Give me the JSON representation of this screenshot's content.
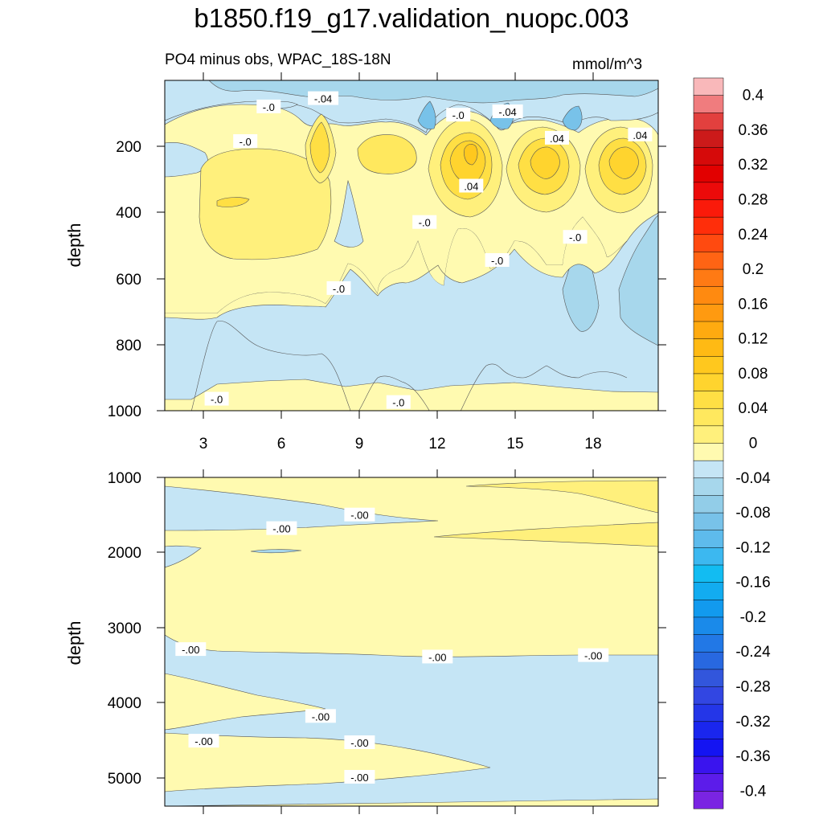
{
  "title": "b1850.f19_g17.validation_nuopc.003",
  "subtitle": "PO4 minus obs, WPAC_18S-18N",
  "units": "mmol/m^3",
  "chart_data": [
    {
      "type": "heatmap",
      "panel": "upper",
      "ylabel": "depth",
      "xlabel": "",
      "xlim": [
        1.5,
        20.5
      ],
      "ylim": [
        1000,
        0
      ],
      "x_ticks": [
        "3",
        "6",
        "9",
        "12",
        "15",
        "18"
      ],
      "y_ticks": [
        "200",
        "400",
        "600",
        "800",
        "1000"
      ],
      "contour_labels": [
        {
          "text": "-.0",
          "x": 5.5,
          "depth": 80
        },
        {
          "text": "-.04",
          "x": 7.6,
          "depth": 55
        },
        {
          "text": "-.0",
          "x": 12.8,
          "depth": 105
        },
        {
          "text": "-.04",
          "x": 14.7,
          "depth": 95
        },
        {
          "text": "-.0",
          "x": 4.6,
          "depth": 185
        },
        {
          "text": ".04",
          "x": 16.6,
          "depth": 175
        },
        {
          "text": ".04",
          "x": 19.8,
          "depth": 165
        },
        {
          "text": ".04",
          "x": 13.3,
          "depth": 320
        },
        {
          "text": "-.0",
          "x": 11.5,
          "depth": 430
        },
        {
          "text": "-.0",
          "x": 17.3,
          "depth": 475
        },
        {
          "text": "-.0",
          "x": 14.3,
          "depth": 545
        },
        {
          "text": "-.0",
          "x": 8.2,
          "depth": 630
        },
        {
          "text": "-.0",
          "x": 3.5,
          "depth": 965
        },
        {
          "text": "-.0",
          "x": 10.5,
          "depth": 975
        }
      ]
    },
    {
      "type": "heatmap",
      "panel": "lower",
      "ylabel": "depth",
      "xlabel": "",
      "xlim": [
        1.5,
        20.5
      ],
      "ylim": [
        5375,
        1000
      ],
      "y_ticks": [
        "1000",
        "2000",
        "3000",
        "4000",
        "5000"
      ],
      "contour_labels": [
        {
          "text": "-.00",
          "x": 9.0,
          "depth": 1500
        },
        {
          "text": "-.00",
          "x": 6.0,
          "depth": 1680
        },
        {
          "text": "-.00",
          "x": 2.5,
          "depth": 3290
        },
        {
          "text": "-.00",
          "x": 12.0,
          "depth": 3390
        },
        {
          "text": "-.00",
          "x": 18.0,
          "depth": 3370
        },
        {
          "text": "-.00",
          "x": 7.5,
          "depth": 4180
        },
        {
          "text": "-.00",
          "x": 3.0,
          "depth": 4510
        },
        {
          "text": "-.00",
          "x": 9.0,
          "depth": 4530
        },
        {
          "text": "-.00",
          "x": 9.0,
          "depth": 4990
        }
      ]
    }
  ],
  "colorbar": {
    "labels": [
      "0.4",
      "0.36",
      "0.32",
      "0.28",
      "0.24",
      "0.2",
      "0.16",
      "0.12",
      "0.08",
      "0.04",
      "0",
      "-0.04",
      "-0.08",
      "-0.12",
      "-0.16",
      "-0.2",
      "-0.24",
      "-0.28",
      "-0.32",
      "-0.36",
      "-0.4"
    ],
    "colors": [
      "#F9B8BA",
      "#F07C7E",
      "#E2403E",
      "#CC1A1A",
      "#D60A0A",
      "#E20000",
      "#EC0A0A",
      "#FA1A0A",
      "#FF2E0A",
      "#FF4A10",
      "#FF6414",
      "#FF7A14",
      "#FF8A10",
      "#FF9A10",
      "#FFAA10",
      "#FFBA14",
      "#FFC81E",
      "#FFD42E",
      "#FFDF44",
      "#FFE85E",
      "#FFF07C",
      "#FFFAB0",
      "#C5E5F5",
      "#A7D7EC",
      "#92CDE8",
      "#78C2E9",
      "#5EBBEC",
      "#3CB8F0",
      "#12BCF2",
      "#12ACF0",
      "#129AEE",
      "#1A8AEA",
      "#2278E6",
      "#2868E0",
      "#3256DC",
      "#3246E2",
      "#2436E8",
      "#1A26EE",
      "#1414F2",
      "#3A14EE",
      "#5C1CEA",
      "#7A24E2"
    ]
  }
}
